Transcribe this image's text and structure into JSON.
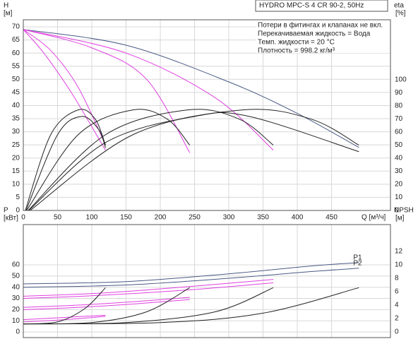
{
  "chart_data": [
    {
      "type": "line",
      "title": "HYDRO MPC-S 4 CR 90-2, 50Hz",
      "annotations": [
        "Потери в фитингах и клапанах не вкл.",
        "Перекачиваемая жидкость = Вода",
        "Темп. жидкости = 20 °C",
        "Плотность = 998.2 кг/м³"
      ],
      "ylabel": "H",
      "yunit": "[м]",
      "y2label": "eta",
      "y2unit": "[%]",
      "xlabel": "Q [м³/ч]",
      "xlim": [
        0,
        536
      ],
      "xticks": [
        0,
        50,
        100,
        150,
        200,
        250,
        300,
        350,
        400,
        450
      ],
      "ylim": [
        0,
        72.7
      ],
      "yticks": [
        0,
        5,
        10,
        15,
        20,
        25,
        30,
        35,
        40,
        45,
        50,
        55,
        60,
        65,
        70
      ],
      "y2lim": [
        0,
        146
      ],
      "y2ticks": [
        0,
        10,
        20,
        30,
        40,
        50,
        60,
        70,
        80,
        90,
        100
      ],
      "grid": true,
      "series": [
        {
          "color": "#4a5a85",
          "x": [
            0,
            150,
            300,
            400,
            490
          ],
          "values": [
            69,
            63,
            49,
            37,
            24
          ]
        },
        {
          "color": "#e040e0",
          "x": [
            0,
            150,
            280,
            365
          ],
          "values": [
            69,
            60,
            43,
            23
          ]
        },
        {
          "color": "#e040e0",
          "x": [
            0,
            100,
            180,
            243
          ],
          "values": [
            69,
            62,
            50,
            22
          ]
        },
        {
          "color": "#e040e0",
          "x": [
            0,
            40,
            80,
            120
          ],
          "values": [
            69,
            61,
            47,
            25
          ]
        },
        {
          "color": "#e040e0",
          "x": [
            0,
            30,
            70,
            120
          ],
          "values": [
            69,
            60,
            45,
            23
          ]
        },
        {
          "color": "#222222",
          "axis": "y2",
          "x": [
            3,
            40,
            80,
            105,
            120
          ],
          "values": [
            0,
            58,
            77,
            70,
            50
          ]
        },
        {
          "color": "#222222",
          "axis": "y2",
          "x": [
            5,
            80,
            160,
            210,
            243
          ],
          "values": [
            0,
            58,
            77,
            70,
            50
          ]
        },
        {
          "color": "#222222",
          "axis": "y2",
          "x": [
            7,
            120,
            240,
            315,
            365
          ],
          "values": [
            0,
            58,
            77,
            70,
            50
          ]
        },
        {
          "color": "#222222",
          "axis": "y2",
          "x": [
            10,
            160,
            320,
            420,
            490
          ],
          "values": [
            0,
            58,
            77,
            70,
            50
          ]
        },
        {
          "color": "#222222",
          "axis": "y2",
          "x": [
            4,
            50,
            85,
            110,
            120
          ],
          "values": [
            0,
            58,
            72,
            62,
            48
          ]
        },
        {
          "color": "#222222",
          "axis": "y2",
          "x": [
            8,
            120,
            250,
            330,
            490
          ],
          "values": [
            0,
            52,
            72,
            72,
            45
          ]
        }
      ]
    },
    {
      "type": "line",
      "ylabel": "P",
      "yunit": "[кВт]",
      "y2label": "NPSH",
      "y2unit": "[м]",
      "ylim": [
        -5,
        96
      ],
      "yticks": [
        0,
        10,
        20,
        30,
        40,
        50,
        60
      ],
      "y2lim": [
        -0.84,
        16
      ],
      "y2ticks": [
        0,
        2,
        4,
        6,
        8,
        10,
        12
      ],
      "grid": true,
      "series": [
        {
          "name": "P1",
          "color": "#4a5a85",
          "x": [
            0,
            150,
            300,
            420,
            490
          ],
          "values": [
            43,
            45,
            52,
            59,
            62
          ]
        },
        {
          "name": "P2",
          "color": "#4a5a85",
          "x": [
            0,
            150,
            300,
            420,
            490
          ],
          "values": [
            40,
            42,
            48,
            54,
            57
          ]
        },
        {
          "color": "#e040e0",
          "x": [
            0,
            120,
            250,
            365
          ],
          "values": [
            32,
            35,
            41,
            47
          ]
        },
        {
          "color": "#e040e0",
          "x": [
            0,
            120,
            250,
            365
          ],
          "values": [
            30,
            33,
            38,
            44
          ]
        },
        {
          "color": "#e040e0",
          "x": [
            0,
            80,
            160,
            243
          ],
          "values": [
            22,
            24,
            27,
            31
          ]
        },
        {
          "color": "#e040e0",
          "x": [
            0,
            80,
            160,
            243
          ],
          "values": [
            20,
            22,
            25,
            29
          ]
        },
        {
          "color": "#e040e0",
          "x": [
            0,
            60,
            120
          ],
          "values": [
            11,
            13,
            15
          ]
        },
        {
          "color": "#e040e0",
          "x": [
            0,
            60,
            120
          ],
          "values": [
            9,
            11,
            14
          ]
        },
        {
          "color": "#222222",
          "axis": "y2",
          "x": [
            0,
            50,
            90,
            120
          ],
          "values": [
            1.2,
            1.5,
            3.5,
            6.6
          ]
        },
        {
          "color": "#222222",
          "axis": "y2",
          "x": [
            0,
            100,
            180,
            243
          ],
          "values": [
            1.2,
            1.4,
            3,
            6.6
          ]
        },
        {
          "color": "#222222",
          "axis": "y2",
          "x": [
            0,
            150,
            280,
            365
          ],
          "values": [
            1.2,
            1.4,
            3,
            6.6
          ]
        },
        {
          "color": "#222222",
          "axis": "y2",
          "x": [
            0,
            200,
            350,
            490
          ],
          "values": [
            1.2,
            1.4,
            2.8,
            6.6
          ]
        }
      ]
    }
  ]
}
